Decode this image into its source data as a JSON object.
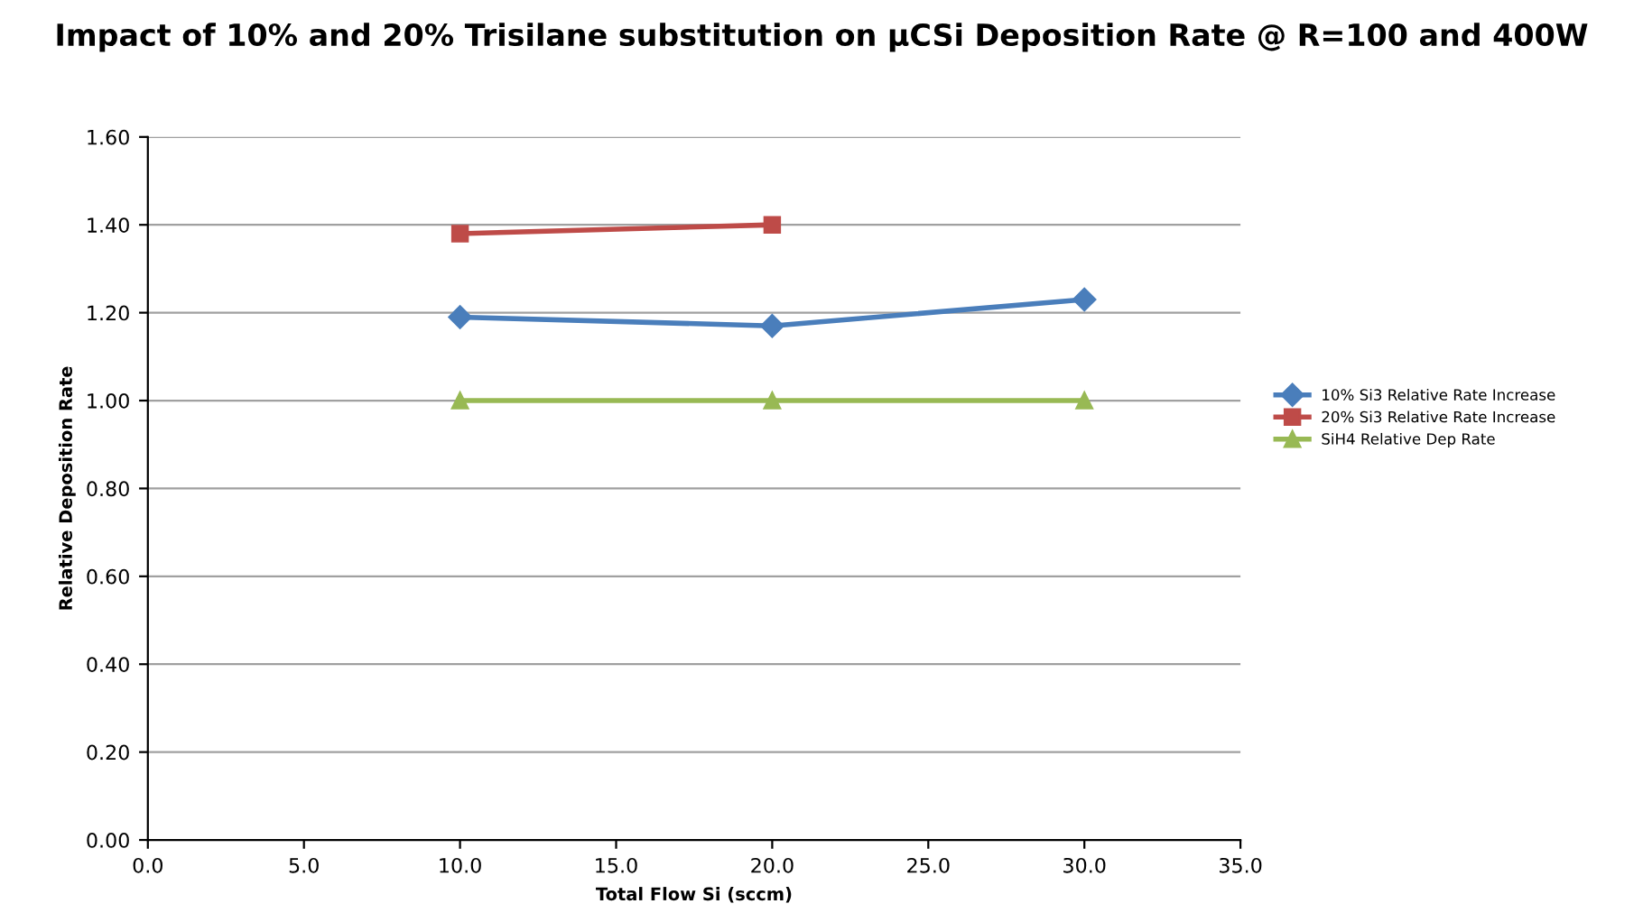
{
  "chart_data": {
    "type": "line",
    "title": "Impact of 10% and 20% Trisilane substitution on µCSi Deposition Rate @ R=100 and 400W",
    "xlabel": "Total Flow Si (sccm)",
    "ylabel": "Relative Deposition Rate",
    "x": [
      10,
      20,
      30
    ],
    "series": [
      {
        "name": "10% Si3 Relative Rate Increase",
        "color": "#4a7ebb",
        "marker": "diamond",
        "values": [
          1.19,
          1.17,
          1.23
        ]
      },
      {
        "name": "20% Si3 Relative Rate Increase",
        "color": "#be4b48",
        "marker": "square",
        "values": [
          1.38,
          1.4,
          null
        ]
      },
      {
        "name": "SiH4 Relative Dep Rate",
        "color": "#98b954",
        "marker": "triangle",
        "values": [
          1.0,
          1.0,
          1.0
        ]
      }
    ],
    "xlim": [
      0,
      35
    ],
    "xticks": [
      {
        "value": 0,
        "label": "0.0"
      },
      {
        "value": 5,
        "label": "5.0"
      },
      {
        "value": 10,
        "label": "10.0"
      },
      {
        "value": 15,
        "label": "15.0"
      },
      {
        "value": 20,
        "label": "20.0"
      },
      {
        "value": 25,
        "label": "25.0"
      },
      {
        "value": 30,
        "label": "30.0"
      },
      {
        "value": 35,
        "label": "35.0"
      }
    ],
    "ylim": [
      0,
      1.6
    ],
    "yticks": [
      {
        "value": 0,
        "label": "0.00"
      },
      {
        "value": 0.2,
        "label": "0.20"
      },
      {
        "value": 0.4,
        "label": "0.40"
      },
      {
        "value": 0.6,
        "label": "0.60"
      },
      {
        "value": 0.8,
        "label": "0.80"
      },
      {
        "value": 1.0,
        "label": "1.00"
      },
      {
        "value": 1.2,
        "label": "1.20"
      },
      {
        "value": 1.4,
        "label": "1.40"
      },
      {
        "value": 1.6,
        "label": "1.60"
      }
    ],
    "grid": "y",
    "legend": "right",
    "line_style": "solid"
  }
}
